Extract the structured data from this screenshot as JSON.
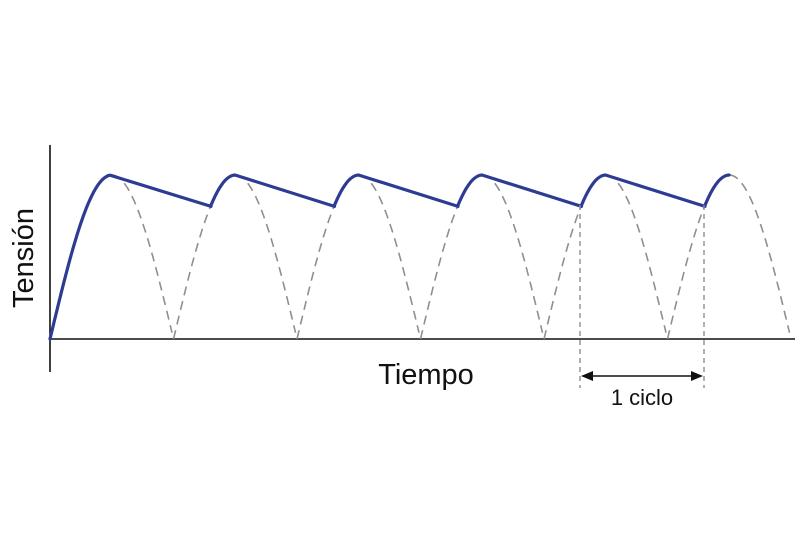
{
  "diagram": {
    "ylabel": "Tensión",
    "xlabel": "Tiempo",
    "cycle_label": "1 ciclo",
    "colors": {
      "smoothed_output": "#2e3b93",
      "rectified_wave": "#8f8f8f",
      "axes": "#111111"
    },
    "peaks_shown": 6
  }
}
